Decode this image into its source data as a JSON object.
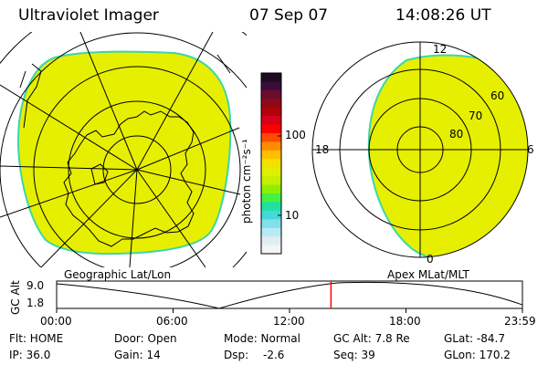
{
  "header": {
    "instrument": "Ultraviolet Imager",
    "date": "07 Sep 07",
    "time": "14:08:26 UT"
  },
  "left_panel": {
    "label": "Geographic Lat/Lon"
  },
  "right_panel": {
    "label": "Apex MLat/MLT",
    "mlt_labels": {
      "top": "12",
      "left": "18",
      "right": "6",
      "bottom": "0"
    },
    "lat_labels": [
      "60",
      "70",
      "80"
    ]
  },
  "colorbar": {
    "unit_label": "photon cm⁻²s⁻¹",
    "ticks": [
      "100",
      "10"
    ],
    "colors": [
      "#1a0b1e",
      "#3a0d3a",
      "#6a0d2e",
      "#8e0a18",
      "#b3000d",
      "#d8001a",
      "#ff0000",
      "#ff4a00",
      "#ff8c00",
      "#ffc000",
      "#f4e000",
      "#e0ef00",
      "#c4f000",
      "#8ef000",
      "#44f044",
      "#22e0a0",
      "#44d8d8",
      "#80e0ec",
      "#b8eaf4",
      "#e0eef2",
      "#f4f4f4"
    ]
  },
  "alt_plot": {
    "axis_label": "GC Alt",
    "ymax": "9.0",
    "ymin": "1.8",
    "time_ticks": [
      "00:00",
      "06:00",
      "12:00",
      "18:00",
      "23:59"
    ],
    "current_time_fraction": 0.589,
    "marker_color": "#ff0000"
  },
  "status": {
    "flt": "Flt: HOME",
    "door": "Door: Open",
    "mode": "Mode: Normal",
    "gc_alt": "GC Alt: 7.8 Re",
    "glat": "GLat: -84.7",
    "ip": "IP: 36.0",
    "gain": "Gain: 14",
    "dsp_label": "Dsp:",
    "dsp_value": "-2.6",
    "seq": "Seq: 39",
    "glon": "GLon: 170.2"
  },
  "colors": {
    "aurora": "#e6ef00",
    "aurora_edge": "#3cd6a8"
  }
}
